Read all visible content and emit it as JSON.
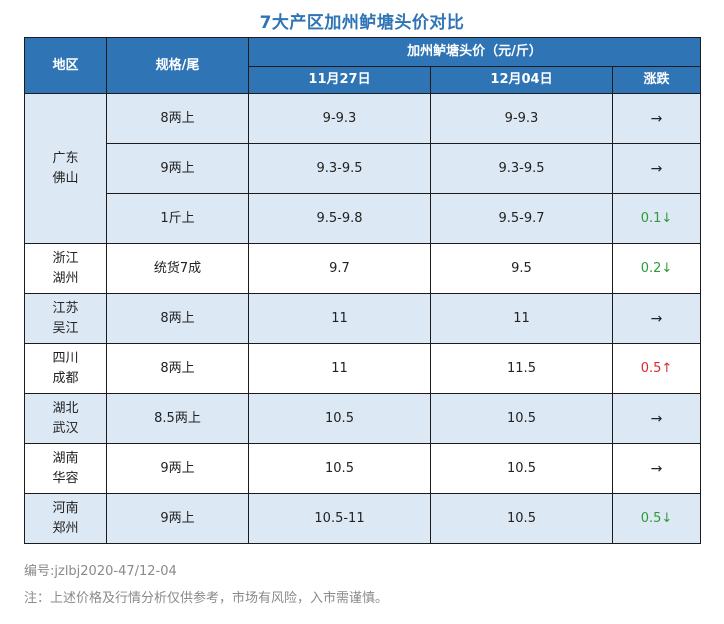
{
  "title": "7大产区加州鲈塘头价对比",
  "headers": {
    "region": "地区",
    "spec": "规格/尾",
    "price_group": "加州鲈塘头价（元/斤）",
    "date1": "11月27日",
    "date2": "12月04日",
    "change": "涨跌"
  },
  "groups": [
    {
      "region": [
        "广东",
        "佛山"
      ],
      "rows": [
        {
          "spec": "8两上",
          "p1": "9-9.3",
          "p2": "9-9.3",
          "change": "→",
          "dir": "flat"
        },
        {
          "spec": "9两上",
          "p1": "9.3-9.5",
          "p2": "9.3-9.5",
          "change": "→",
          "dir": "flat"
        },
        {
          "spec": "1斤上",
          "p1": "9.5-9.8",
          "p2": "9.5-9.7",
          "change": "0.1↓",
          "dir": "down"
        }
      ]
    },
    {
      "region": [
        "浙江",
        "湖州"
      ],
      "rows": [
        {
          "spec": "统货7成",
          "p1": "9.7",
          "p2": "9.5",
          "change": "0.2↓",
          "dir": "down"
        }
      ]
    },
    {
      "region": [
        "江苏",
        "吴江"
      ],
      "rows": [
        {
          "spec": "8两上",
          "p1": "11",
          "p2": "11",
          "change": "→",
          "dir": "flat"
        }
      ]
    },
    {
      "region": [
        "四川",
        "成都"
      ],
      "rows": [
        {
          "spec": "8两上",
          "p1": "11",
          "p2": "11.5",
          "change": "0.5↑",
          "dir": "up"
        }
      ]
    },
    {
      "region": [
        "湖北",
        "武汉"
      ],
      "rows": [
        {
          "spec": "8.5两上",
          "p1": "10.5",
          "p2": "10.5",
          "change": "→",
          "dir": "flat"
        }
      ]
    },
    {
      "region": [
        "湖南",
        "华容"
      ],
      "rows": [
        {
          "spec": "9两上",
          "p1": "10.5",
          "p2": "10.5",
          "change": "→",
          "dir": "flat"
        }
      ]
    },
    {
      "region": [
        "河南",
        "郑州"
      ],
      "rows": [
        {
          "spec": "9两上",
          "p1": "10.5-11",
          "p2": "10.5",
          "change": "0.5↓",
          "dir": "down"
        }
      ]
    }
  ],
  "code": "编号:jzlbj2020-47/12-04",
  "note": "注：上述价格及行情分析仅供参考，市场有风险，入市需谨慎。",
  "colors": {
    "header": "#2f74b5",
    "row_shade": "#dde8f5",
    "down": "#2f9a3a",
    "up": "#d62b2b"
  }
}
